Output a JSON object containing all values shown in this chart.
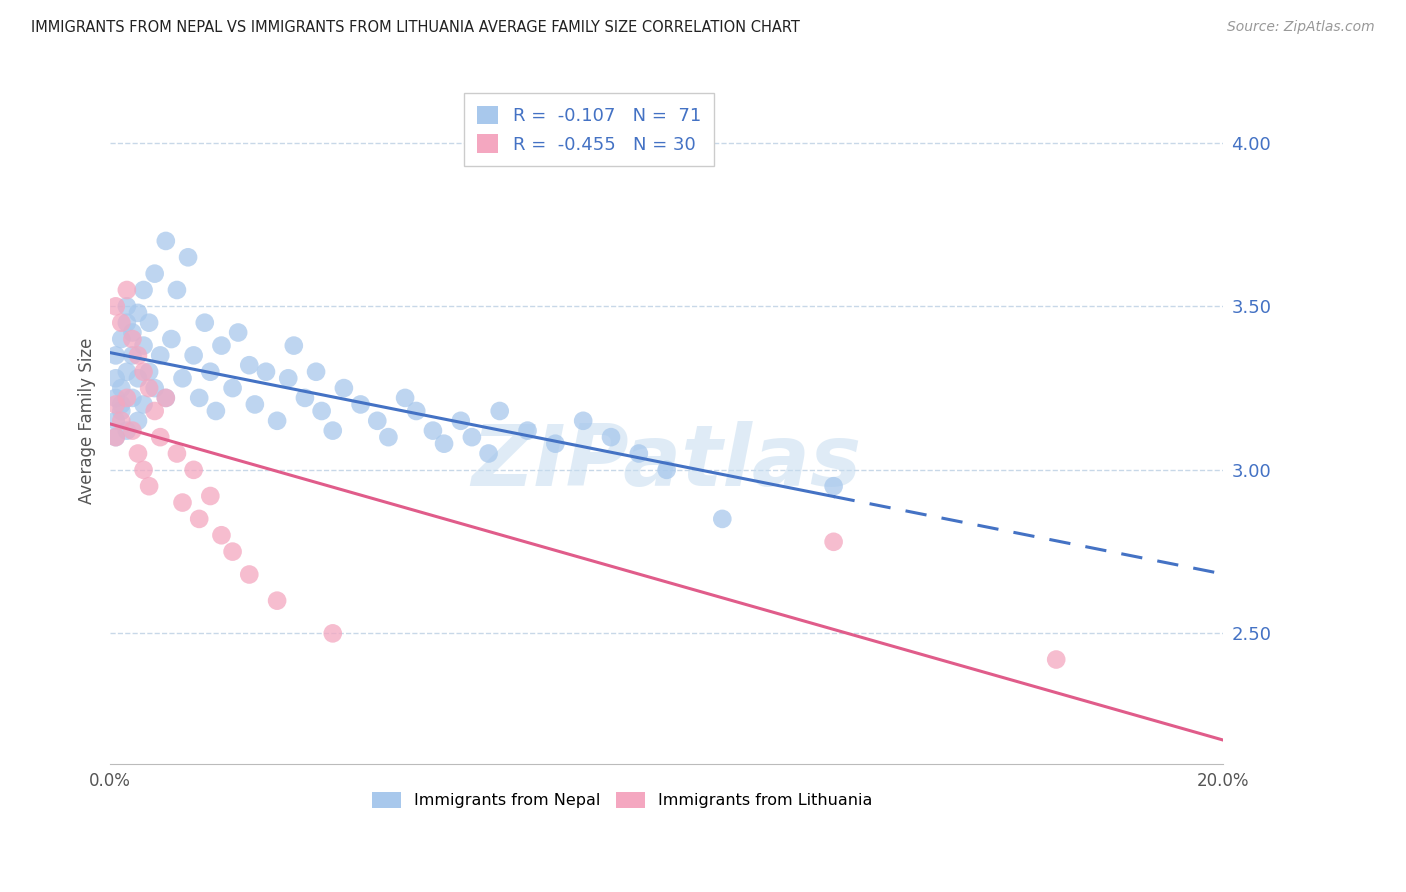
{
  "title": "IMMIGRANTS FROM NEPAL VS IMMIGRANTS FROM LITHUANIA AVERAGE FAMILY SIZE CORRELATION CHART",
  "source": "Source: ZipAtlas.com",
  "ylabel": "Average Family Size",
  "yticks": [
    2.5,
    3.0,
    3.5,
    4.0
  ],
  "ylim": [
    2.1,
    4.2
  ],
  "xlim": [
    0.0,
    0.2
  ],
  "nepal_color": "#A8C8EC",
  "nepal_color_line": "#4472C4",
  "lithuania_color": "#F4A7C0",
  "lithuania_color_line": "#E05C8A",
  "legend_R_nepal": "-0.107",
  "legend_N_nepal": "71",
  "legend_R_lithuania": "-0.455",
  "legend_N_lithuania": "30",
  "watermark": "ZIPatlas",
  "axis_label_color": "#4472C4",
  "grid_color": "#C8D8E8",
  "title_color": "#222222",
  "source_color": "#999999",
  "nepal_x": [
    0.001,
    0.001,
    0.001,
    0.001,
    0.001,
    0.002,
    0.002,
    0.002,
    0.002,
    0.003,
    0.003,
    0.003,
    0.003,
    0.004,
    0.004,
    0.004,
    0.005,
    0.005,
    0.005,
    0.006,
    0.006,
    0.006,
    0.007,
    0.007,
    0.008,
    0.008,
    0.009,
    0.01,
    0.01,
    0.011,
    0.012,
    0.013,
    0.014,
    0.015,
    0.016,
    0.017,
    0.018,
    0.019,
    0.02,
    0.022,
    0.023,
    0.025,
    0.026,
    0.028,
    0.03,
    0.032,
    0.033,
    0.035,
    0.037,
    0.038,
    0.04,
    0.042,
    0.045,
    0.048,
    0.05,
    0.053,
    0.055,
    0.058,
    0.06,
    0.063,
    0.065,
    0.068,
    0.07,
    0.075,
    0.08,
    0.085,
    0.09,
    0.095,
    0.1,
    0.11,
    0.13
  ],
  "nepal_y": [
    3.22,
    3.15,
    3.28,
    3.35,
    3.1,
    3.2,
    3.4,
    3.25,
    3.18,
    3.45,
    3.3,
    3.12,
    3.5,
    3.35,
    3.22,
    3.42,
    3.28,
    3.48,
    3.15,
    3.38,
    3.2,
    3.55,
    3.3,
    3.45,
    3.25,
    3.6,
    3.35,
    3.22,
    3.7,
    3.4,
    3.55,
    3.28,
    3.65,
    3.35,
    3.22,
    3.45,
    3.3,
    3.18,
    3.38,
    3.25,
    3.42,
    3.32,
    3.2,
    3.3,
    3.15,
    3.28,
    3.38,
    3.22,
    3.3,
    3.18,
    3.12,
    3.25,
    3.2,
    3.15,
    3.1,
    3.22,
    3.18,
    3.12,
    3.08,
    3.15,
    3.1,
    3.05,
    3.18,
    3.12,
    3.08,
    3.15,
    3.1,
    3.05,
    3.0,
    2.85,
    2.95
  ],
  "lithuania_x": [
    0.001,
    0.001,
    0.001,
    0.002,
    0.002,
    0.003,
    0.003,
    0.004,
    0.004,
    0.005,
    0.005,
    0.006,
    0.006,
    0.007,
    0.007,
    0.008,
    0.009,
    0.01,
    0.012,
    0.013,
    0.015,
    0.016,
    0.018,
    0.02,
    0.022,
    0.025,
    0.03,
    0.04,
    0.13,
    0.17
  ],
  "lithuania_y": [
    3.5,
    3.2,
    3.1,
    3.45,
    3.15,
    3.55,
    3.22,
    3.4,
    3.12,
    3.35,
    3.05,
    3.3,
    3.0,
    3.25,
    2.95,
    3.18,
    3.1,
    3.22,
    3.05,
    2.9,
    3.0,
    2.85,
    2.92,
    2.8,
    2.75,
    2.68,
    2.6,
    2.5,
    2.78,
    2.42
  ]
}
